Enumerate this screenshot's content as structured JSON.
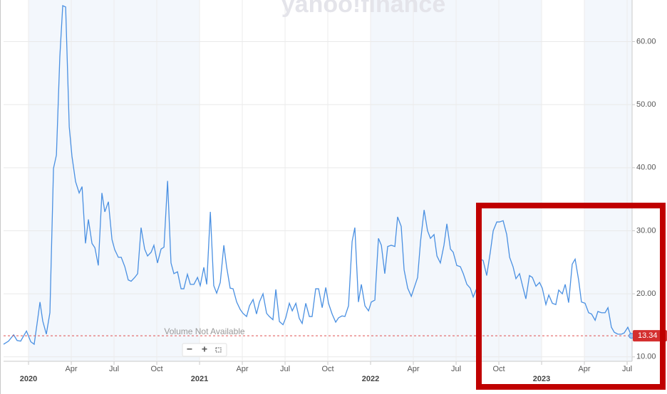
{
  "chart_data": {
    "type": "line",
    "watermark": "yahoo!finance",
    "annotation": "Volume Not Available",
    "controls": [
      "−",
      "+"
    ],
    "xlim": [
      2019.854,
      2023.529
    ],
    "ylim": [
      9.3,
      66.6
    ],
    "xticks": [
      {
        "value": 2020,
        "label": "2020"
      },
      {
        "value": 2020.25,
        "label": "Apr"
      },
      {
        "value": 2020.5,
        "label": "Jul"
      },
      {
        "value": 2020.75,
        "label": "Oct"
      },
      {
        "value": 2021,
        "label": "2021"
      },
      {
        "value": 2021.25,
        "label": "Apr"
      },
      {
        "value": 2021.5,
        "label": "Jul"
      },
      {
        "value": 2021.75,
        "label": "Oct"
      },
      {
        "value": 2022,
        "label": "2022"
      },
      {
        "value": 2022.25,
        "label": "Apr"
      },
      {
        "value": 2022.5,
        "label": "Jul"
      },
      {
        "value": 2022.75,
        "label": "Oct"
      },
      {
        "value": 2023,
        "label": "2023"
      },
      {
        "value": 2023.25,
        "label": "Apr"
      },
      {
        "value": 2023.5,
        "label": "Jul"
      }
    ],
    "yticks": [
      {
        "value": 10,
        "label": "10.00"
      },
      {
        "value": 20,
        "label": "20.00"
      },
      {
        "value": 30,
        "label": "30.00"
      },
      {
        "value": 40,
        "label": "40.00"
      },
      {
        "value": 50,
        "label": "50.00"
      },
      {
        "value": 60,
        "label": "60.00"
      }
    ],
    "grid": true,
    "series": [
      {
        "color": "#4a90e2",
        "x": [
          2019.854,
          2019.883,
          2019.913,
          2019.933,
          2019.954,
          2019.988,
          2020.013,
          2020.033,
          2020.05,
          2020.067,
          2020.083,
          2020.104,
          2020.125,
          2020.146,
          2020.163,
          2020.183,
          2020.2,
          2020.217,
          2020.238,
          2020.254,
          2020.275,
          2020.296,
          2020.313,
          2020.333,
          2020.35,
          2020.371,
          2020.388,
          2020.408,
          2020.429,
          2020.446,
          2020.467,
          2020.488,
          2020.504,
          2020.525,
          2020.542,
          2020.563,
          2020.583,
          2020.6,
          2020.621,
          2020.638,
          2020.658,
          2020.679,
          2020.696,
          2020.717,
          2020.733,
          2020.754,
          2020.775,
          2020.792,
          2020.813,
          2020.833,
          2020.85,
          2020.871,
          2020.892,
          2020.908,
          2020.929,
          2020.946,
          2020.967,
          2020.988,
          2021.004,
          2021.025,
          2021.042,
          2021.063,
          2021.083,
          2021.1,
          2021.121,
          2021.142,
          2021.158,
          2021.179,
          2021.196,
          2021.217,
          2021.238,
          2021.254,
          2021.275,
          2021.292,
          2021.313,
          2021.333,
          2021.35,
          2021.371,
          2021.392,
          2021.408,
          2021.429,
          2021.446,
          2021.467,
          2021.488,
          2021.504,
          2021.525,
          2021.542,
          2021.563,
          2021.583,
          2021.6,
          2021.621,
          2021.642,
          2021.658,
          2021.679,
          2021.696,
          2021.717,
          2021.738,
          2021.754,
          2021.775,
          2021.796,
          2021.813,
          2021.833,
          2021.85,
          2021.871,
          2021.892,
          2021.908,
          2021.929,
          2021.946,
          2021.967,
          2021.988,
          2022.004,
          2022.025,
          2022.046,
          2022.063,
          2022.083,
          2022.1,
          2022.121,
          2022.142,
          2022.158,
          2022.179,
          2022.196,
          2022.217,
          2022.238,
          2022.254,
          2022.275,
          2022.292,
          2022.313,
          2022.333,
          2022.35,
          2022.371,
          2022.388,
          2022.408,
          2022.429,
          2022.446,
          2022.467,
          2022.483,
          2022.504,
          2022.525,
          2022.542,
          2022.563,
          2022.583,
          2022.6,
          2022.621,
          2022.642,
          2022.658,
          2022.679,
          2022.7,
          2022.717,
          2022.738,
          2022.754,
          2022.775,
          2022.796,
          2022.813,
          2022.833,
          2022.85,
          2022.871,
          2022.892,
          2022.908,
          2022.929,
          2022.946,
          2022.967,
          2022.988,
          2023.004,
          2023.025,
          2023.042,
          2023.063,
          2023.083,
          2023.1,
          2023.121,
          2023.138,
          2023.158,
          2023.179,
          2023.196,
          2023.217,
          2023.233,
          2023.254,
          2023.275,
          2023.292,
          2023.313,
          2023.329,
          2023.35,
          2023.371,
          2023.388,
          2023.408,
          2023.425,
          2023.446,
          2023.467,
          2023.483,
          2023.504,
          2023.525
        ],
        "values": [
          12.0,
          12.5,
          13.5,
          12.6,
          12.5,
          14.1,
          12.4,
          12.0,
          15.3,
          18.7,
          15.7,
          13.6,
          17.0,
          39.9,
          42.0,
          57.6,
          65.7,
          65.5,
          46.5,
          41.8,
          37.8,
          36.0,
          37.0,
          28.0,
          31.8,
          28.0,
          27.3,
          24.5,
          36.0,
          33.0,
          34.6,
          28.6,
          27.0,
          25.8,
          25.8,
          24.3,
          22.2,
          22.0,
          22.6,
          23.2,
          30.5,
          27.1,
          26.0,
          26.6,
          27.7,
          24.9,
          27.1,
          27.4,
          37.9,
          24.9,
          23.2,
          23.5,
          20.8,
          20.8,
          23.1,
          21.5,
          21.5,
          22.6,
          21.3,
          24.2,
          21.5,
          33.0,
          21.3,
          20.1,
          21.8,
          27.7,
          24.3,
          20.9,
          20.8,
          18.7,
          17.5,
          16.9,
          16.4,
          18.1,
          19.1,
          16.8,
          18.7,
          20.0,
          16.9,
          16.4,
          15.9,
          20.7,
          15.6,
          15.1,
          16.2,
          18.5,
          17.3,
          18.5,
          16.1,
          15.3,
          18.5,
          16.4,
          16.4,
          20.8,
          20.8,
          17.8,
          21.0,
          18.5,
          16.8,
          15.5,
          16.2,
          16.5,
          16.4,
          18.1,
          28.3,
          30.5,
          18.7,
          21.5,
          18.1,
          17.3,
          18.7,
          19.0,
          28.8,
          27.7,
          23.2,
          27.5,
          27.7,
          27.5,
          32.2,
          30.7,
          23.8,
          20.9,
          19.6,
          20.9,
          22.6,
          28.3,
          33.3,
          30.0,
          28.8,
          29.4,
          26.0,
          24.9,
          27.7,
          31.1,
          27.1,
          26.6,
          24.5,
          24.3,
          23.2,
          21.5,
          20.9,
          19.5,
          20.9,
          25.5,
          25.3,
          22.9,
          26.6,
          30.0,
          31.4,
          31.4,
          31.6,
          29.4,
          25.8,
          24.3,
          22.4,
          23.2,
          20.9,
          19.2,
          22.9,
          22.6,
          21.2,
          21.8,
          20.9,
          18.3,
          19.8,
          18.5,
          18.3,
          20.6,
          20.0,
          21.5,
          18.6,
          24.7,
          25.5,
          22.1,
          18.7,
          18.5,
          17.0,
          16.8,
          15.8,
          17.2,
          17.0,
          17.0,
          17.8,
          14.7,
          13.9,
          13.6,
          13.6,
          13.8,
          14.7,
          13.34
        ]
      }
    ]
  }
}
